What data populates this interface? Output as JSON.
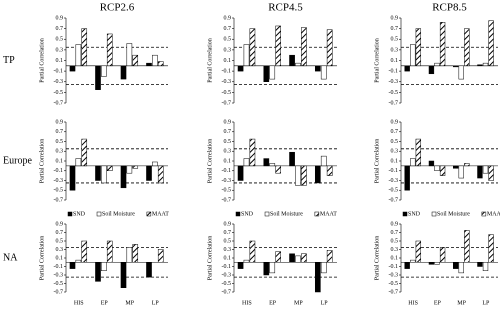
{
  "chart_data": [
    {
      "type": "bar",
      "title": "RCP2.6",
      "row_label": "TP",
      "ylabel": "Partial Correlation",
      "ylim": [
        -0.7,
        0.9
      ],
      "yticks": [
        -0.7,
        -0.5,
        -0.3,
        -0.1,
        0.1,
        0.3,
        0.5,
        0.7,
        0.9
      ],
      "hlines": [
        0.35,
        -0.35
      ],
      "categories": [
        null,
        null,
        null,
        null
      ],
      "series": [
        {
          "color": "#000000",
          "values": [
            -0.1,
            -0.45,
            -0.25,
            0.05
          ]
        },
        {
          "color": "#ffffff",
          "values": [
            0.4,
            -0.2,
            0.42,
            0.2
          ]
        },
        {
          "color": "#ffffff",
          "hatch": true,
          "values": [
            0.7,
            0.6,
            0.2,
            0.08
          ]
        }
      ]
    },
    {
      "type": "bar",
      "title": "RCP4.5",
      "ylabel": "Partial Correlation",
      "ylim": [
        -0.7,
        0.9
      ],
      "yticks": [
        -0.7,
        -0.5,
        -0.3,
        -0.1,
        0.1,
        0.3,
        0.5,
        0.7,
        0.9
      ],
      "hlines": [
        0.35,
        -0.35
      ],
      "categories": [
        null,
        null,
        null,
        null
      ],
      "series": [
        {
          "color": "#000000",
          "values": [
            -0.1,
            -0.3,
            0.2,
            -0.1
          ]
        },
        {
          "color": "#ffffff",
          "values": [
            0.4,
            -0.25,
            0.05,
            -0.25
          ]
        },
        {
          "color": "#ffffff",
          "hatch": true,
          "values": [
            0.7,
            0.75,
            0.72,
            0.68
          ]
        }
      ]
    },
    {
      "type": "bar",
      "title": "RCP8.5",
      "ylabel": "Partial Correlation",
      "ylim": [
        -0.7,
        0.9
      ],
      "yticks": [
        -0.7,
        -0.5,
        -0.3,
        -0.1,
        0.1,
        0.3,
        0.5,
        0.7,
        0.9
      ],
      "hlines": [
        0.35,
        -0.35
      ],
      "categories": [
        null,
        null,
        null,
        null
      ],
      "series": [
        {
          "color": "#000000",
          "values": [
            -0.1,
            -0.15,
            -0.02,
            0.02
          ]
        },
        {
          "color": "#ffffff",
          "values": [
            0.4,
            0.05,
            -0.25,
            0.05
          ]
        },
        {
          "color": "#ffffff",
          "hatch": true,
          "values": [
            0.7,
            0.82,
            0.7,
            0.85
          ]
        }
      ]
    },
    {
      "type": "bar",
      "row_label": "Europe",
      "ylabel": "Partial Correlation",
      "ylim": [
        -0.7,
        0.9
      ],
      "yticks": [
        -0.7,
        -0.5,
        -0.3,
        -0.1,
        0.1,
        0.3,
        0.5,
        0.7,
        0.9
      ],
      "hlines": [
        0.35,
        -0.35
      ],
      "categories": [
        null,
        null,
        null,
        null
      ],
      "series": [
        {
          "color": "#000000",
          "values": [
            -0.5,
            -0.3,
            -0.45,
            -0.3
          ]
        },
        {
          "color": "#ffffff",
          "values": [
            0.15,
            -0.35,
            -0.15,
            0.08
          ]
        },
        {
          "color": "#ffffff",
          "hatch": true,
          "values": [
            0.55,
            -0.1,
            -0.05,
            -0.35
          ]
        }
      ]
    },
    {
      "type": "bar",
      "ylabel": "Partial Correlation",
      "ylim": [
        -0.7,
        0.9
      ],
      "yticks": [
        -0.7,
        -0.5,
        -0.3,
        -0.1,
        0.1,
        0.3,
        0.5,
        0.7,
        0.9
      ],
      "hlines": [
        0.35,
        -0.35
      ],
      "categories": [
        null,
        null,
        null,
        null
      ],
      "series": [
        {
          "color": "#000000",
          "values": [
            -0.3,
            0.15,
            0.28,
            -0.35
          ]
        },
        {
          "color": "#ffffff",
          "values": [
            0.15,
            0.05,
            -0.4,
            0.2
          ]
        },
        {
          "color": "#ffffff",
          "hatch": true,
          "values": [
            0.55,
            -0.15,
            -0.4,
            -0.2
          ]
        }
      ]
    },
    {
      "type": "bar",
      "ylabel": "Partial Correlation",
      "ylim": [
        -0.7,
        0.9
      ],
      "yticks": [
        -0.7,
        -0.5,
        -0.3,
        -0.1,
        0.1,
        0.3,
        0.5,
        0.7,
        0.9
      ],
      "hlines": [
        0.35,
        -0.35
      ],
      "categories": [
        null,
        null,
        null,
        null
      ],
      "series": [
        {
          "color": "#000000",
          "values": [
            -0.5,
            0.1,
            -0.05,
            -0.25
          ]
        },
        {
          "color": "#ffffff",
          "values": [
            0.15,
            -0.1,
            -0.25,
            -0.15
          ]
        },
        {
          "color": "#ffffff",
          "hatch": true,
          "values": [
            0.55,
            -0.2,
            0.05,
            -0.3
          ]
        }
      ]
    },
    {
      "type": "bar",
      "row_label": "NA",
      "ylabel": "Partial Correlation",
      "ylim": [
        -0.7,
        0.9
      ],
      "yticks": [
        -0.7,
        -0.5,
        -0.3,
        -0.1,
        0.1,
        0.3,
        0.5,
        0.7,
        0.9
      ],
      "hlines": [
        0.35,
        -0.35
      ],
      "categories": [
        "HIS",
        "EP",
        "MP",
        "LP"
      ],
      "series": [
        {
          "name": "SND",
          "color": "#000000",
          "values": [
            -0.15,
            -0.45,
            -0.6,
            -0.35
          ]
        },
        {
          "name": "Soil Moisture",
          "color": "#ffffff",
          "values": [
            0.05,
            -0.2,
            0.35,
            0
          ]
        },
        {
          "name": "MAAT",
          "color": "#ffffff",
          "hatch": true,
          "values": [
            0.5,
            0.5,
            0.42,
            0.3
          ]
        }
      ]
    },
    {
      "type": "bar",
      "ylabel": "Partial Correlation",
      "ylim": [
        -0.7,
        0.9
      ],
      "yticks": [
        -0.7,
        -0.5,
        -0.3,
        -0.1,
        0.1,
        0.3,
        0.5,
        0.7,
        0.9
      ],
      "hlines": [
        0.35,
        -0.35
      ],
      "categories": [
        "HIS",
        "EP",
        "MP",
        "LP"
      ],
      "series": [
        {
          "name": "SND",
          "color": "#000000",
          "values": [
            -0.15,
            -0.3,
            0.2,
            -0.7
          ]
        },
        {
          "name": "Soil Moisture",
          "color": "#ffffff",
          "values": [
            0.05,
            -0.25,
            0.15,
            -0.25
          ]
        },
        {
          "name": "MAAT",
          "color": "#ffffff",
          "hatch": true,
          "values": [
            0.5,
            0.25,
            0.2,
            0.28
          ]
        }
      ]
    },
    {
      "type": "bar",
      "ylabel": "Partial Correlation",
      "ylim": [
        -0.7,
        0.9
      ],
      "yticks": [
        -0.7,
        -0.5,
        -0.3,
        -0.1,
        0.1,
        0.3,
        0.5,
        0.7,
        0.9
      ],
      "hlines": [
        0.35,
        -0.35
      ],
      "categories": [
        "HIS",
        "EP",
        "MP",
        "LP"
      ],
      "series": [
        {
          "name": "SND",
          "color": "#000000",
          "values": [
            -0.15,
            -0.05,
            -0.15,
            -0.1
          ]
        },
        {
          "name": "Soil Moisture",
          "color": "#ffffff",
          "values": [
            0.05,
            -0.05,
            -0.25,
            -0.2
          ]
        },
        {
          "name": "MAAT",
          "color": "#ffffff",
          "hatch": true,
          "values": [
            0.5,
            0.35,
            0.75,
            0.65
          ]
        }
      ]
    }
  ]
}
